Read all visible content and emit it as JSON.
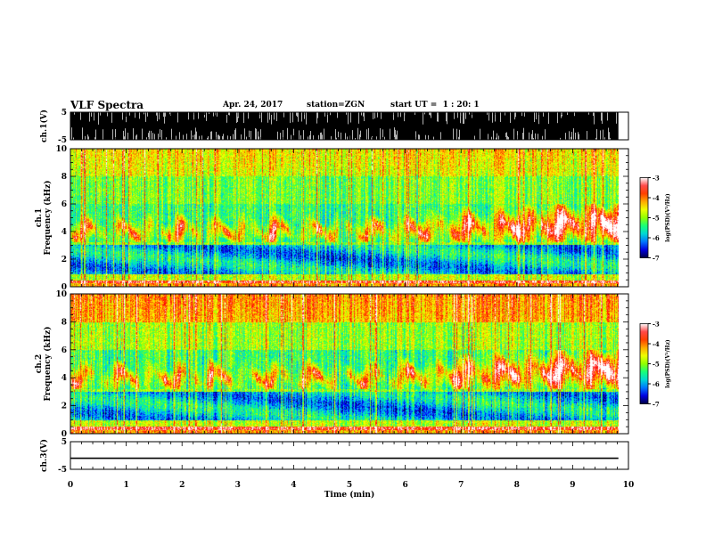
{
  "header": {
    "title": "VLF Spectra",
    "date": "Apr. 24, 2017",
    "station": "station=ZGN",
    "start_ut": "start UT =  1 : 20: 1"
  },
  "chart_data": [
    {
      "type": "line",
      "panel": "ch1-waveform",
      "ylabel": "ch.1(V)",
      "ylim": [
        -5,
        5
      ],
      "yticks": [
        "5",
        "-5"
      ],
      "xlim": [
        0,
        10
      ],
      "data_end_min": 9.82
    },
    {
      "type": "heatmap",
      "panel": "ch1-spectrogram",
      "ylabel_channel": "ch.1",
      "ylabel": "Frequency (kHz)",
      "ylim": [
        0,
        10
      ],
      "yticks": [
        "0",
        "2",
        "4",
        "6",
        "8",
        "10"
      ],
      "xlim": [
        0,
        10
      ],
      "colorbar": {
        "label": "log(PSD)(V²/Hz)",
        "range": [
          -7,
          -3
        ],
        "ticks": [
          "-3",
          "-4",
          "-5",
          "-6",
          "-7"
        ]
      }
    },
    {
      "type": "heatmap",
      "panel": "ch2-spectrogram",
      "ylabel_channel": "ch.2",
      "ylabel": "Frequency (kHz)",
      "ylim": [
        0,
        10
      ],
      "yticks": [
        "0",
        "2",
        "4",
        "6",
        "8",
        "10"
      ],
      "xlim": [
        0,
        10
      ],
      "colorbar": {
        "label": "log(PSD)(V²/Hz)",
        "range": [
          -7,
          -3
        ],
        "ticks": [
          "-3",
          "-4",
          "-5",
          "-6",
          "-7"
        ]
      }
    },
    {
      "type": "line",
      "panel": "ch3-waveform",
      "ylabel": "ch.3(V)",
      "ylim": [
        -5,
        5
      ],
      "yticks": [
        "5",
        "-5"
      ],
      "xlim": [
        0,
        10
      ],
      "x": [
        0,
        9.82
      ],
      "values": [
        -1,
        -1
      ]
    }
  ],
  "xaxis": {
    "label": "Time (min)",
    "ticks": [
      "0",
      "1",
      "2",
      "3",
      "4",
      "5",
      "6",
      "7",
      "8",
      "9",
      "10"
    ]
  },
  "colors": {
    "background": "#ffffff",
    "foreground": "#000000",
    "colormap": [
      "#000044",
      "#0000ff",
      "#00bfff",
      "#00ff90",
      "#90ff00",
      "#ffff00",
      "#ff8000",
      "#ff0000",
      "#ffffff"
    ]
  }
}
